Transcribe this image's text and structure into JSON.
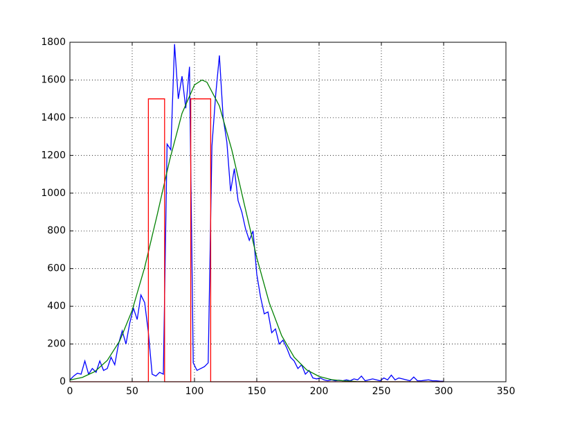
{
  "chart_data": {
    "type": "line",
    "xlim": [
      0,
      350
    ],
    "ylim": [
      0,
      1800
    ],
    "xticks": [
      0,
      50,
      100,
      150,
      200,
      250,
      300,
      350
    ],
    "yticks": [
      0,
      200,
      400,
      600,
      800,
      1000,
      1200,
      1400,
      1600,
      1800
    ],
    "grid": true,
    "series": [
      {
        "color": "#0000ff",
        "x": [
          0,
          3,
          6,
          9,
          12,
          15,
          18,
          21,
          24,
          27,
          30,
          33,
          36,
          39,
          42,
          45,
          48,
          51,
          54,
          57,
          60,
          63,
          66,
          69,
          72,
          75,
          78,
          81,
          84,
          87,
          90,
          93,
          96,
          99,
          102,
          105,
          108,
          111,
          114,
          117,
          120,
          123,
          126,
          129,
          132,
          135,
          138,
          141,
          144,
          147,
          150,
          153,
          156,
          159,
          162,
          165,
          168,
          171,
          174,
          177,
          180,
          183,
          186,
          189,
          192,
          195,
          198,
          201,
          204,
          207,
          210,
          213,
          216,
          219,
          222,
          225,
          228,
          231,
          234,
          237,
          240,
          243,
          246,
          249,
          252,
          255,
          258,
          261,
          264,
          267,
          270,
          273,
          276,
          279,
          282,
          285,
          288,
          291,
          294,
          297,
          300
        ],
        "values": [
          10,
          30,
          45,
          40,
          110,
          40,
          70,
          50,
          110,
          60,
          70,
          130,
          90,
          200,
          270,
          200,
          310,
          390,
          330,
          460,
          420,
          260,
          40,
          30,
          50,
          40,
          1260,
          1230,
          1790,
          1500,
          1620,
          1450,
          1670,
          100,
          60,
          70,
          80,
          100,
          1250,
          1520,
          1730,
          1400,
          1270,
          1010,
          1130,
          960,
          900,
          810,
          750,
          800,
          570,
          450,
          360,
          370,
          260,
          280,
          200,
          220,
          180,
          130,
          110,
          70,
          90,
          40,
          60,
          20,
          15,
          20,
          10,
          5,
          10,
          5,
          8,
          5,
          10,
          5,
          15,
          10,
          30,
          5,
          10,
          15,
          10,
          5,
          20,
          10,
          35,
          10,
          20,
          15,
          10,
          5,
          25,
          5,
          5,
          8,
          10,
          5,
          5,
          3,
          2
        ]
      },
      {
        "color": "#008000",
        "x": [
          0,
          10,
          20,
          30,
          40,
          50,
          60,
          70,
          80,
          90,
          100,
          106,
          110,
          120,
          130,
          140,
          150,
          160,
          170,
          180,
          190,
          200,
          210,
          220,
          230,
          240,
          250,
          260,
          270,
          280,
          290,
          300
        ],
        "values": [
          9,
          23,
          54,
          113,
          217,
          379,
          606,
          883,
          1173,
          1423,
          1574,
          1600,
          1588,
          1462,
          1228,
          941,
          658,
          419,
          244,
          130,
          63,
          28,
          11,
          4.5,
          1.5,
          0.4,
          0.1,
          0,
          0,
          0,
          0,
          0
        ]
      },
      {
        "color": "#ff0000",
        "x": [
          0,
          63,
          63,
          76,
          76,
          97,
          97,
          113,
          113,
          300
        ],
        "values": [
          0,
          0,
          1500,
          1500,
          0,
          0,
          1500,
          1500,
          0,
          0
        ]
      }
    ]
  }
}
